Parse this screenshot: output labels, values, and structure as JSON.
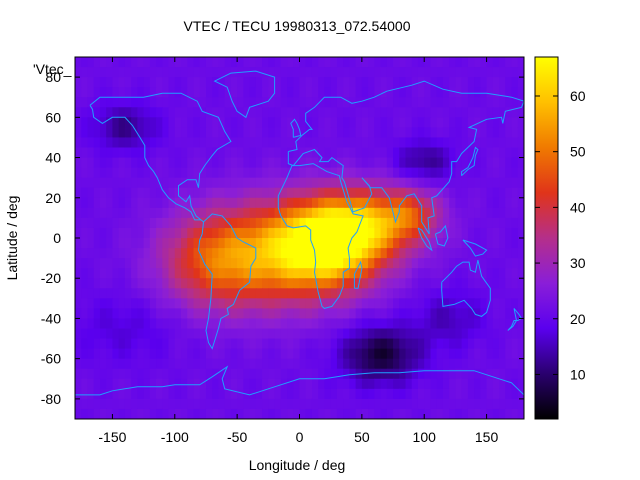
{
  "chart_data": {
    "type": "heatmap",
    "title": "VTEC / TECU 19980313_072.54000",
    "xlabel": "Longitude / deg",
    "ylabel": "Latitude / deg",
    "xlim": [
      -180,
      180
    ],
    "ylim": [
      -90,
      90
    ],
    "x_ticks": [
      -150,
      -100,
      -50,
      0,
      50,
      100,
      150
    ],
    "y_ticks": [
      -80,
      -60,
      -40,
      -20,
      0,
      20,
      40,
      60,
      80
    ],
    "x_tick_labels": [
      "-150",
      "-100",
      "-50",
      "0",
      "50",
      "100",
      "150"
    ],
    "y_tick_labels": [
      "-80",
      "-60",
      "-40",
      "-20",
      "0",
      "20",
      "40",
      "60",
      "80"
    ],
    "legend_key": "'Vtec_",
    "colorbar": {
      "range": [
        2,
        67
      ],
      "ticks": [
        10,
        20,
        30,
        40,
        50,
        60
      ],
      "tick_labels": [
        "10",
        "20",
        "30",
        "40",
        "50",
        "60"
      ],
      "palette": "black-purple-red-orange-yellow"
    },
    "field": {
      "background_value": 21,
      "features": [
        {
          "kind": "peak",
          "lon": 25,
          "lat": -2,
          "value": 58,
          "sigma_lon": 28,
          "sigma_lat": 14
        },
        {
          "kind": "peak",
          "lon": -15,
          "lat": -8,
          "value": 50,
          "sigma_lon": 45,
          "sigma_lat": 18
        },
        {
          "kind": "peak",
          "lon": 60,
          "lat": 8,
          "value": 44,
          "sigma_lon": 30,
          "sigma_lat": 12
        },
        {
          "kind": "peak",
          "lon": -70,
          "lat": -12,
          "value": 38,
          "sigma_lon": 30,
          "sigma_lat": 16
        },
        {
          "kind": "peak",
          "lon": 90,
          "lat": 12,
          "value": 34,
          "sigma_lon": 15,
          "sigma_lat": 8
        },
        {
          "kind": "trough",
          "lon": 65,
          "lat": -58,
          "value": 6,
          "sigma_lon": 22,
          "sigma_lat": 10
        },
        {
          "kind": "trough",
          "lon": 100,
          "lat": 38,
          "value": 12,
          "sigma_lon": 16,
          "sigma_lat": 7
        },
        {
          "kind": "trough",
          "lon": -140,
          "lat": 55,
          "value": 12,
          "sigma_lon": 18,
          "sigma_lat": 8
        },
        {
          "kind": "trough",
          "lon": 120,
          "lat": -40,
          "value": 15,
          "sigma_lon": 20,
          "sigma_lat": 10
        },
        {
          "kind": "trough",
          "lon": -140,
          "lat": -45,
          "value": 17,
          "sigma_lon": 30,
          "sigma_lat": 12
        }
      ]
    }
  },
  "colors": {
    "coastline": "#1fa0ff",
    "axis": "#000000",
    "palette_stops": [
      "#000000",
      "#2a006e",
      "#5a00ee",
      "#8a1ed8",
      "#b52f8a",
      "#e0341a",
      "#f07a00",
      "#ffc000",
      "#ffff00"
    ]
  }
}
